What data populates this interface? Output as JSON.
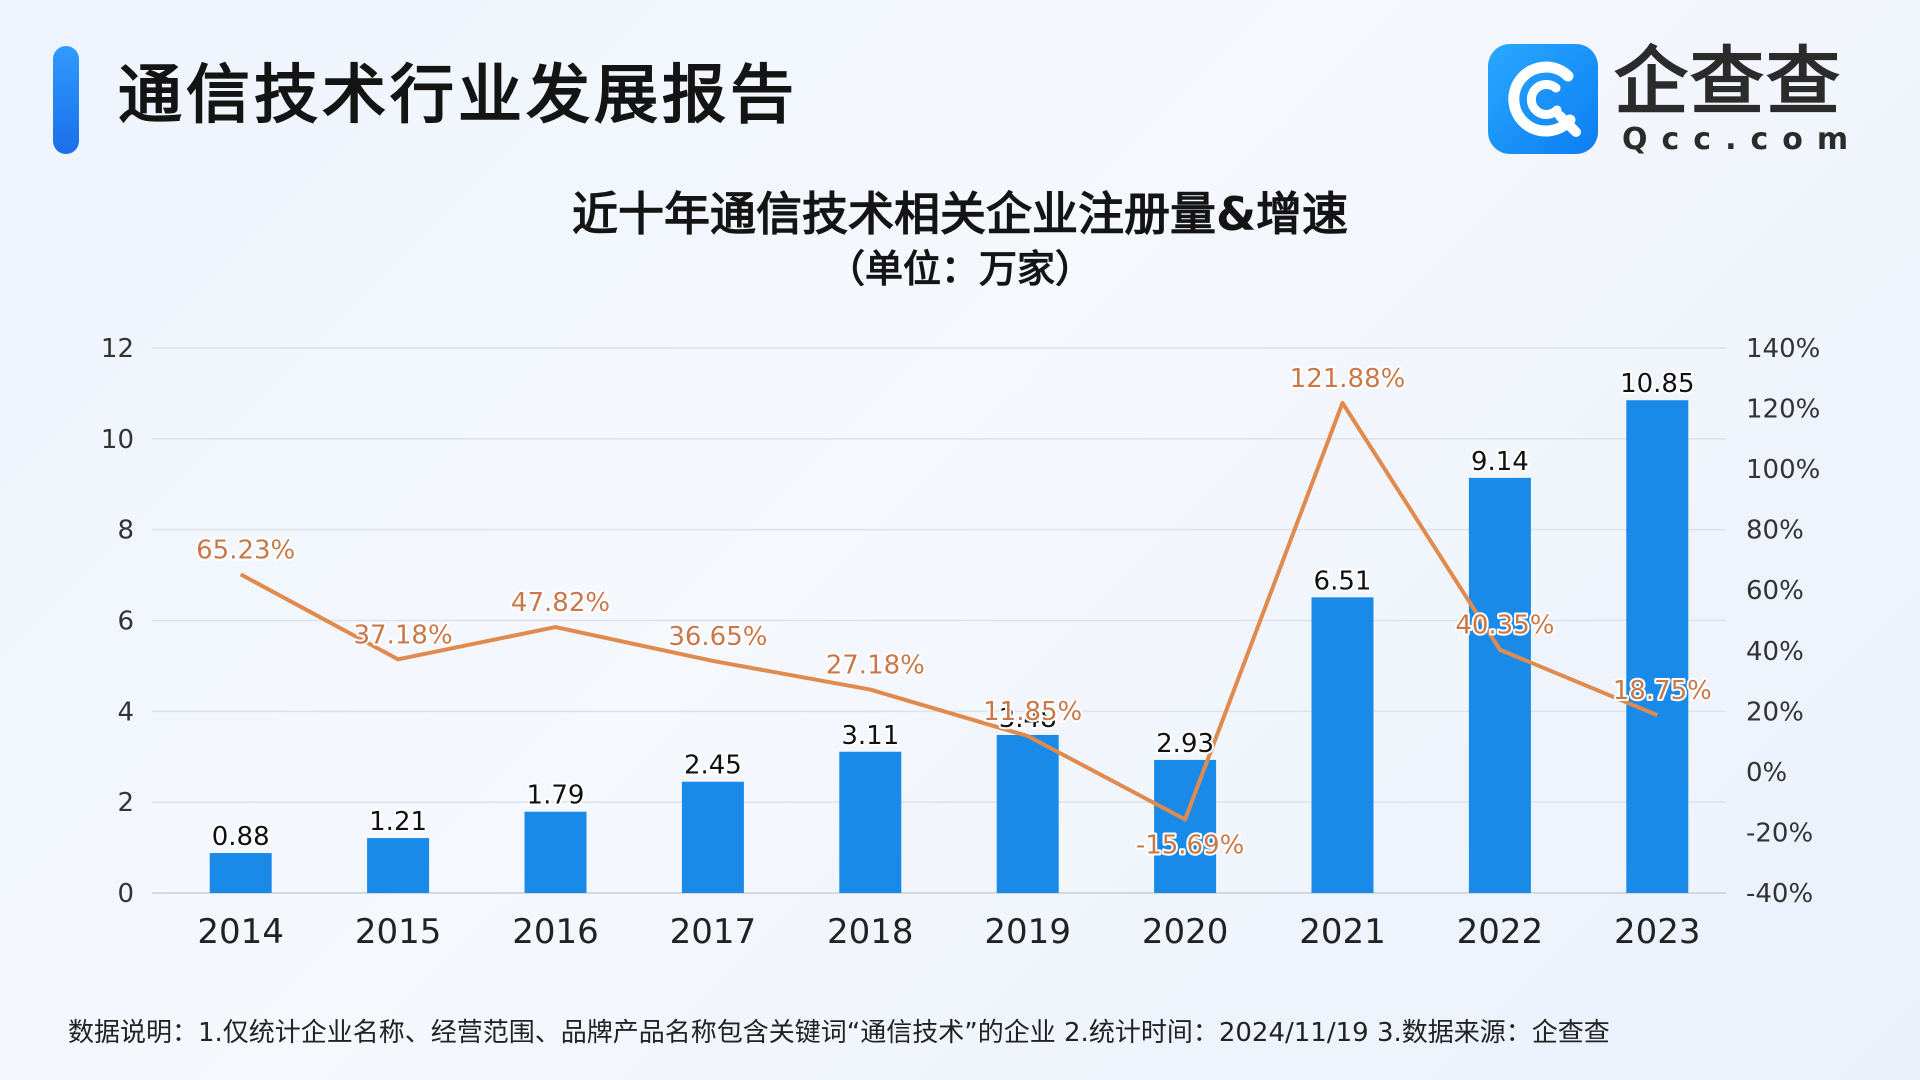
{
  "header": {
    "report_title": "通信技术行业发展报告",
    "logo_cn": "企查查",
    "logo_en": "Qcc.com"
  },
  "colors": {
    "accent": "#1a7fe8",
    "bar": "#1a8ae8",
    "line": "#e08a4e",
    "line_label": "#c9784a"
  },
  "chart_data": {
    "type": "bar",
    "title": "近十年通信技术相关企业注册量&增速",
    "subtitle": "（单位：万家）",
    "categories": [
      "2014",
      "2015",
      "2016",
      "2017",
      "2018",
      "2019",
      "2020",
      "2021",
      "2022",
      "2023"
    ],
    "series": [
      {
        "type": "bar",
        "axis": "left",
        "values": [
          0.88,
          1.21,
          1.79,
          2.45,
          3.11,
          3.48,
          2.93,
          6.51,
          9.14,
          10.85
        ],
        "labels": [
          "0.88",
          "1.21",
          "1.79",
          "2.45",
          "3.11",
          "3.48",
          "2.93",
          "6.51",
          "9.14",
          "10.85"
        ]
      },
      {
        "type": "line",
        "axis": "right",
        "values": [
          65.23,
          37.18,
          47.82,
          36.65,
          27.18,
          11.85,
          -15.69,
          121.88,
          40.35,
          18.75
        ],
        "labels": [
          "65.23%",
          "37.18%",
          "47.82%",
          "36.65%",
          "27.18%",
          "11.85%",
          "-15.69%",
          "121.88%",
          "40.35%",
          "18.75%"
        ]
      }
    ],
    "y_left": {
      "min": 0,
      "max": 12,
      "ticks": [
        "0",
        "2",
        "4",
        "6",
        "8",
        "10",
        "12"
      ]
    },
    "y_right": {
      "min": -40,
      "max": 140,
      "ticks": [
        "-40%",
        "-20%",
        "0%",
        "20%",
        "40%",
        "60%",
        "80%",
        "100%",
        "120%",
        "140%"
      ]
    },
    "grid": true,
    "legend": "none"
  },
  "footnote": "数据说明：1.仅统计企业名称、经营范围、品牌产品名称包含关键词“通信技术”的企业   2.统计时间：2024/11/19    3.数据来源：企查查"
}
